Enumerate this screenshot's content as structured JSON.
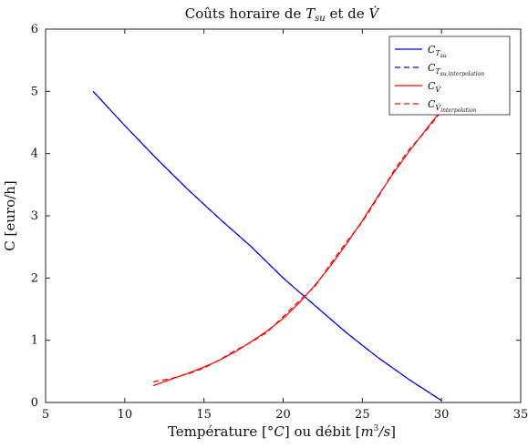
{
  "chart_data": {
    "type": "line",
    "title": "Coûts horaire de T_su et de V̇",
    "xlabel": "Température [°C] ou débit [m³/s]",
    "ylabel": "C [euro/h]",
    "xlim": [
      5,
      35
    ],
    "ylim": [
      0,
      6
    ],
    "xticks": [
      5,
      10,
      15,
      20,
      25,
      30,
      35
    ],
    "yticks": [
      0,
      1,
      2,
      3,
      4,
      5,
      6
    ],
    "grid": false,
    "legend_position": "top-right",
    "series": [
      {
        "name": "C_Tsu",
        "color": "#0000ff",
        "dash": "solid",
        "x": [
          8,
          10,
          12,
          14,
          16,
          18,
          20,
          21,
          22,
          24,
          26,
          28,
          30
        ],
        "y": [
          5.0,
          4.45,
          3.92,
          3.42,
          2.95,
          2.5,
          2.0,
          1.78,
          1.56,
          1.12,
          0.72,
          0.36,
          0.03
        ]
      },
      {
        "name": "C_Tsu,interpolation",
        "color": "#0000ff",
        "dash": "dashed",
        "x": [
          8,
          10,
          12,
          14,
          16,
          18,
          20,
          21,
          22,
          24,
          26,
          28,
          30
        ],
        "y": [
          5.0,
          4.45,
          3.92,
          3.42,
          2.95,
          2.5,
          2.0,
          1.78,
          1.56,
          1.12,
          0.72,
          0.36,
          0.03
        ]
      },
      {
        "name": "C_V̇",
        "color": "#ff0000",
        "dash": "solid",
        "x": [
          11.8,
          13,
          14,
          15,
          16,
          17,
          18,
          19,
          20,
          21,
          22,
          23,
          24,
          25,
          26,
          27,
          28,
          29,
          30
        ],
        "y": [
          0.27,
          0.38,
          0.47,
          0.57,
          0.68,
          0.82,
          0.98,
          1.15,
          1.35,
          1.6,
          1.88,
          2.2,
          2.55,
          2.92,
          3.32,
          3.7,
          4.05,
          4.38,
          4.7
        ]
      },
      {
        "name": "C_V̇,interpolation",
        "color": "#ff0000",
        "dash": "dashed",
        "x": [
          11.8,
          13,
          14,
          15,
          16,
          17,
          18,
          19,
          20,
          21,
          22,
          23,
          24,
          25,
          26,
          27,
          28,
          29,
          30
        ],
        "y": [
          0.33,
          0.39,
          0.46,
          0.55,
          0.69,
          0.84,
          0.97,
          1.13,
          1.38,
          1.63,
          1.86,
          2.23,
          2.58,
          2.9,
          3.3,
          3.73,
          4.08,
          4.36,
          4.68
        ]
      }
    ]
  }
}
